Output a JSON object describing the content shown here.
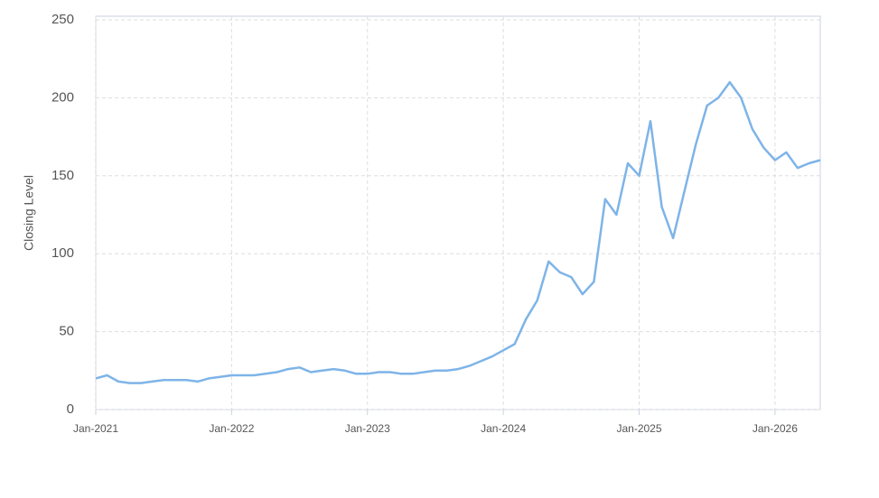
{
  "chart_data": {
    "type": "line",
    "y_label": "Closing Level",
    "x": [
      "2021-01",
      "2021-02",
      "2021-03",
      "2021-04",
      "2021-05",
      "2021-06",
      "2021-07",
      "2021-08",
      "2021-09",
      "2021-10",
      "2021-11",
      "2021-12",
      "2022-01",
      "2022-02",
      "2022-03",
      "2022-04",
      "2022-05",
      "2022-06",
      "2022-07",
      "2022-08",
      "2022-09",
      "2022-10",
      "2022-11",
      "2022-12",
      "2023-01",
      "2023-02",
      "2023-03",
      "2023-04",
      "2023-05",
      "2023-06",
      "2023-07",
      "2023-08",
      "2023-09",
      "2023-10",
      "2023-11",
      "2023-12",
      "2024-01",
      "2024-02",
      "2024-03",
      "2024-04",
      "2024-05",
      "2024-06",
      "2024-07",
      "2024-08",
      "2024-09",
      "2024-10",
      "2024-11",
      "2024-12",
      "2025-01",
      "2025-02",
      "2025-03",
      "2025-04",
      "2025-05",
      "2025-06",
      "2025-07",
      "2025-08",
      "2025-09",
      "2025-10",
      "2025-11",
      "2025-12",
      "2026-01",
      "2026-02",
      "2026-03",
      "2026-04",
      "2026-05"
    ],
    "series": [
      {
        "color": "#7eb4e8",
        "values": [
          20,
          22,
          18,
          17,
          17,
          18,
          19,
          19,
          19,
          18,
          20,
          21,
          22,
          22,
          22,
          23,
          24,
          26,
          27,
          24,
          25,
          26,
          25,
          23,
          23,
          24,
          24,
          23,
          23,
          24,
          25,
          25,
          26,
          28,
          31,
          34,
          38,
          42,
          58,
          70,
          95,
          88,
          85,
          74,
          82,
          135,
          125,
          158,
          150,
          185,
          130,
          110,
          140,
          170,
          195,
          200,
          210,
          200,
          180,
          168,
          160,
          165,
          155,
          158,
          160
        ]
      }
    ],
    "xlim": [
      "2021-01",
      "2026-05"
    ],
    "xticks": [
      {
        "value": "2021-01",
        "label": "Jan-2021"
      },
      {
        "value": "2022-01",
        "label": "Jan-2022"
      },
      {
        "value": "2023-01",
        "label": "Jan-2023"
      },
      {
        "value": "2024-01",
        "label": "Jan-2024"
      },
      {
        "value": "2025-01",
        "label": "Jan-2025"
      },
      {
        "value": "2026-01",
        "label": "Jan-2026"
      }
    ],
    "ylim": [
      0,
      250
    ],
    "yticks": [
      0,
      50,
      100,
      150,
      200,
      250
    ],
    "grid": true
  }
}
